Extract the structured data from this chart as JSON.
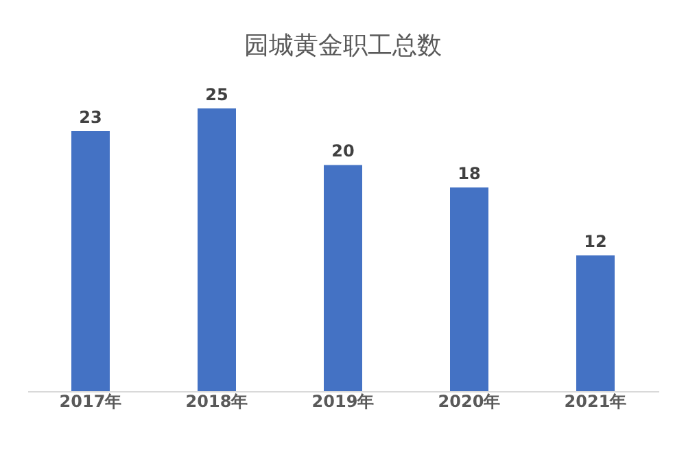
{
  "chart_data": {
    "type": "bar",
    "title": "园城黄金职工总数",
    "categories": [
      "2017年",
      "2018年",
      "2019年",
      "2020年",
      "2021年"
    ],
    "values": [
      23,
      25,
      20,
      18,
      12
    ],
    "color": "#4472c4",
    "data_labels": true
  }
}
